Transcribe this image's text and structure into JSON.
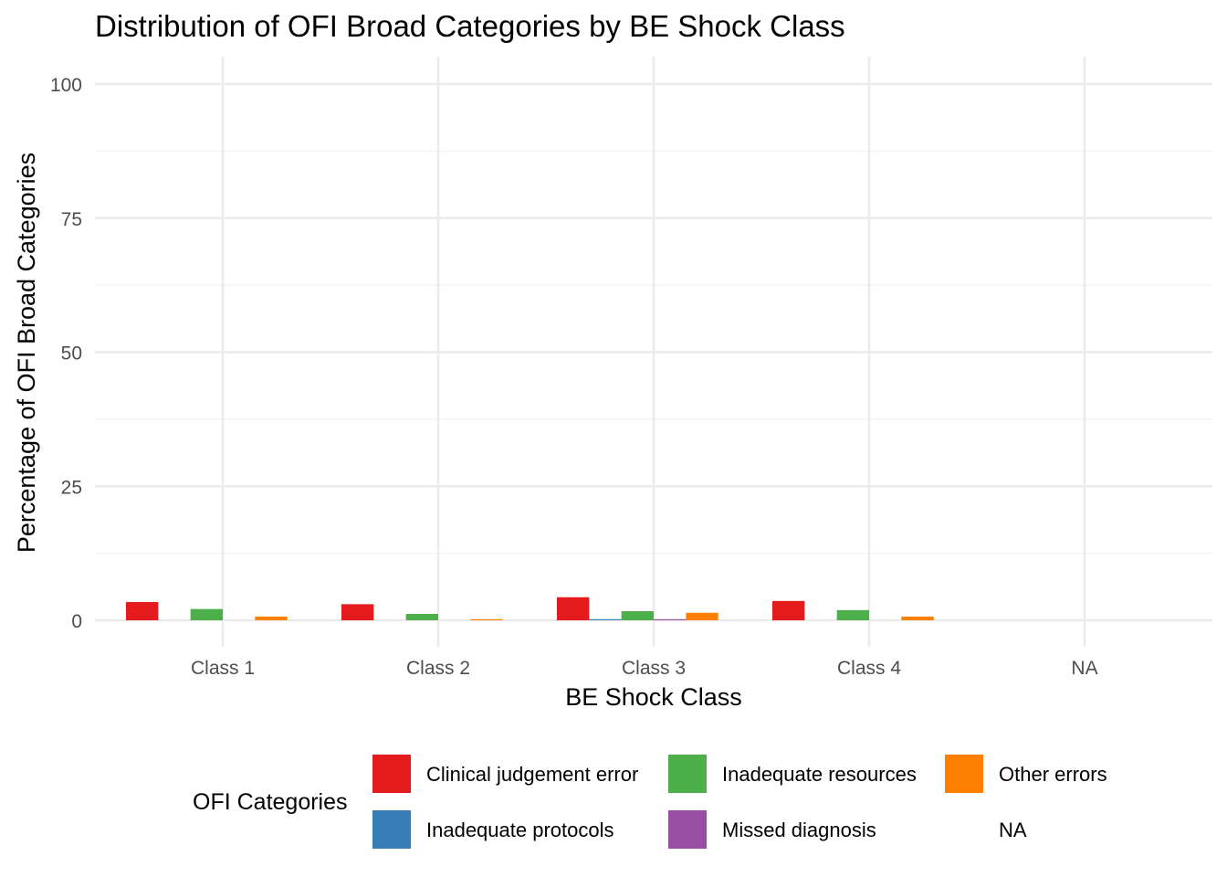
{
  "chart_data": {
    "type": "bar",
    "title": "Distribution of OFI Broad Categories by BE Shock Class",
    "xlabel": "BE Shock Class",
    "ylabel": "Percentage of OFI Broad Categories",
    "categories": [
      "Class 1",
      "Class 2",
      "Class 3",
      "Class 4",
      "NA"
    ],
    "ylim": [
      0,
      100
    ],
    "yticks": [
      "0",
      "25",
      "50",
      "75",
      "100"
    ],
    "grid": true,
    "legend": {
      "title": "OFI Categories",
      "position": "bottom",
      "entries": [
        {
          "label": "Clinical judgement error",
          "color": "#E41A1C"
        },
        {
          "label": "Inadequate resources",
          "color": "#4DAF4A"
        },
        {
          "label": "Other errors",
          "color": "#FF7F00"
        },
        {
          "label": "Inadequate protocols",
          "color": "#377EB8"
        },
        {
          "label": "Missed diagnosis",
          "color": "#984EA3"
        },
        {
          "label": "NA",
          "color": ""
        }
      ]
    },
    "series": [
      {
        "name": "Clinical judgement error",
        "color": "#E41A1C",
        "values": [
          3.4,
          3.0,
          4.3,
          3.6,
          0
        ]
      },
      {
        "name": "Inadequate protocols",
        "color": "#377EB8",
        "values": [
          0,
          0,
          0.2,
          0,
          0
        ]
      },
      {
        "name": "Inadequate resources",
        "color": "#4DAF4A",
        "values": [
          2.1,
          1.2,
          1.7,
          1.9,
          0
        ]
      },
      {
        "name": "Missed diagnosis",
        "color": "#984EA3",
        "values": [
          0,
          0,
          0.2,
          0,
          0
        ]
      },
      {
        "name": "Other errors",
        "color": "#FF7F00",
        "values": [
          0.7,
          0.2,
          1.4,
          0.7,
          0
        ]
      },
      {
        "name": "NA",
        "color": "",
        "values": [
          0,
          0,
          0,
          0,
          0
        ]
      }
    ]
  }
}
